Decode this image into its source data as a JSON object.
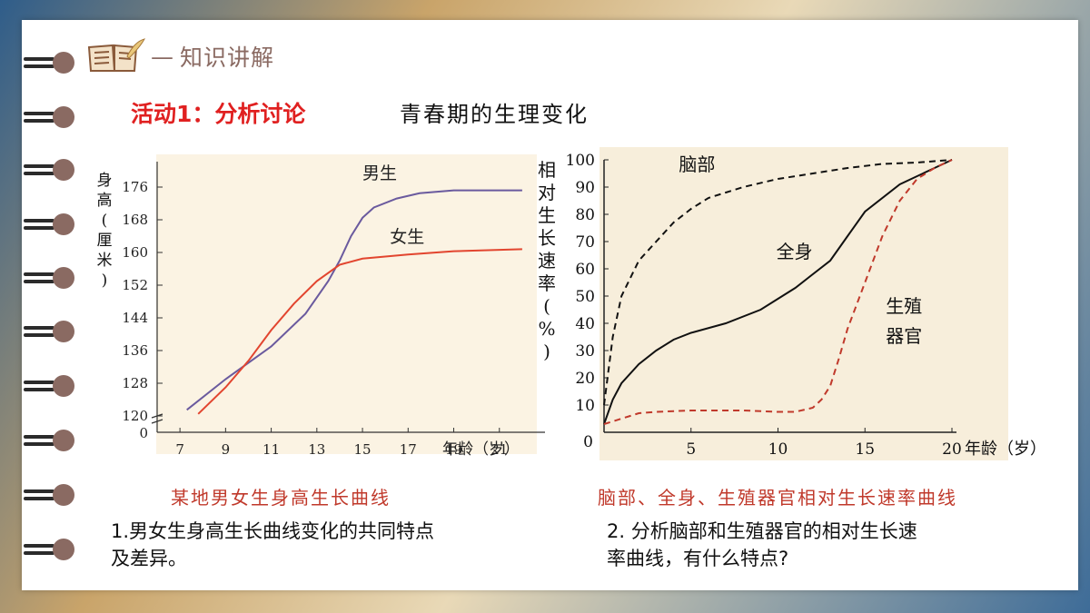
{
  "header": {
    "title": "知识讲解",
    "dash": "—"
  },
  "activity": {
    "label": "活动1：分析讨论",
    "topic": "青春期的生理变化"
  },
  "chart_data": [
    {
      "type": "line",
      "ylabel": "身高(厘米)",
      "xlabel": "年龄（岁）",
      "x_ticks": [
        7,
        9,
        11,
        13,
        15,
        17,
        19,
        21
      ],
      "y_ticks": [
        120,
        128,
        136,
        144,
        152,
        160,
        168,
        176
      ],
      "origin_label": "0",
      "xlim": [
        6,
        23
      ],
      "ylim": [
        116,
        180
      ],
      "series": [
        {
          "name": "男生",
          "color": "#6a5a9e",
          "points": [
            [
              7.3,
              121.5
            ],
            [
              9,
              129
            ],
            [
              11,
              137
            ],
            [
              12.5,
              145
            ],
            [
              13.5,
              153
            ],
            [
              14,
              158
            ],
            [
              14.5,
              164
            ],
            [
              15,
              168.5
            ],
            [
              15.5,
              171
            ],
            [
              16.5,
              173.2
            ],
            [
              17.5,
              174.5
            ],
            [
              19,
              175.2
            ],
            [
              20.5,
              175.2
            ],
            [
              22,
              175.2
            ]
          ]
        },
        {
          "name": "女生",
          "color": "#e2452f",
          "points": [
            [
              7.8,
              120.5
            ],
            [
              9,
              127
            ],
            [
              10,
              133.5
            ],
            [
              11,
              141
            ],
            [
              12,
              147.5
            ],
            [
              13,
              153
            ],
            [
              14,
              157
            ],
            [
              15,
              158.5
            ],
            [
              17,
              159.5
            ],
            [
              19,
              160.3
            ],
            [
              22,
              160.8
            ]
          ]
        }
      ]
    },
    {
      "type": "line",
      "ylabel": "相对生长速率(%)",
      "xlabel": "年龄（岁）",
      "x_ticks": [
        0,
        5,
        10,
        15,
        20
      ],
      "x_tick_labels": [
        "",
        "5",
        "10",
        "15",
        "20"
      ],
      "origin_label": "0",
      "y_ticks": [
        10,
        20,
        30,
        40,
        50,
        60,
        70,
        80,
        90,
        100
      ],
      "xlim": [
        0,
        20
      ],
      "ylim": [
        0,
        100
      ],
      "series": [
        {
          "name": "脑部",
          "style": "dashed",
          "color": "#111111",
          "points": [
            [
              0,
              10
            ],
            [
              0.5,
              35
            ],
            [
              1,
              50
            ],
            [
              2,
              63
            ],
            [
              3,
              70
            ],
            [
              4,
              77
            ],
            [
              5,
              82
            ],
            [
              6,
              86
            ],
            [
              8,
              90
            ],
            [
              10,
              93
            ],
            [
              12,
              95
            ],
            [
              14,
              97
            ],
            [
              16,
              98.5
            ],
            [
              18,
              99
            ],
            [
              20,
              100
            ]
          ]
        },
        {
          "name": "全身",
          "style": "solid",
          "color": "#111111",
          "points": [
            [
              0,
              3
            ],
            [
              0.5,
              12
            ],
            [
              1,
              18
            ],
            [
              2,
              25
            ],
            [
              3,
              30
            ],
            [
              4,
              34
            ],
            [
              5,
              36.5
            ],
            [
              7,
              40
            ],
            [
              9,
              45
            ],
            [
              11,
              53
            ],
            [
              13,
              63
            ],
            [
              14,
              72
            ],
            [
              15,
              81
            ],
            [
              17,
              91
            ],
            [
              19,
              97
            ],
            [
              20,
              100
            ]
          ]
        },
        {
          "name": "生殖器官",
          "style": "dashed",
          "color": "#c0392b",
          "points": [
            [
              0,
              3
            ],
            [
              1,
              5
            ],
            [
              2,
              7
            ],
            [
              3,
              7.5
            ],
            [
              5,
              8
            ],
            [
              8,
              8
            ],
            [
              10,
              7.5
            ],
            [
              11,
              7.5
            ],
            [
              12,
              9
            ],
            [
              12.5,
              12
            ],
            [
              13,
              17
            ],
            [
              13.5,
              27
            ],
            [
              14,
              38
            ],
            [
              15,
              55
            ],
            [
              16,
              72
            ],
            [
              17,
              85
            ],
            [
              18,
              93
            ],
            [
              19,
              97
            ],
            [
              20,
              100
            ]
          ]
        }
      ]
    }
  ],
  "captions": {
    "chart1": "某地男女生身高生长曲线",
    "chart2": "脑部、全身、生殖器官相对生长速率曲线"
  },
  "questions": {
    "q1_line1": "1.男女生身高生长曲线变化的共同特点",
    "q1_line2": "及差异。",
    "q2_line1": "2. 分析脑部和生殖器官的相对生长速",
    "q2_line2": "率曲线，有什么特点?"
  },
  "colors": {
    "accent": "#8a6a62",
    "activity_red": "#e02020",
    "caption_red": "#c0392b"
  },
  "icons": [
    "book-quill-icon",
    "binder-ring-icon"
  ]
}
